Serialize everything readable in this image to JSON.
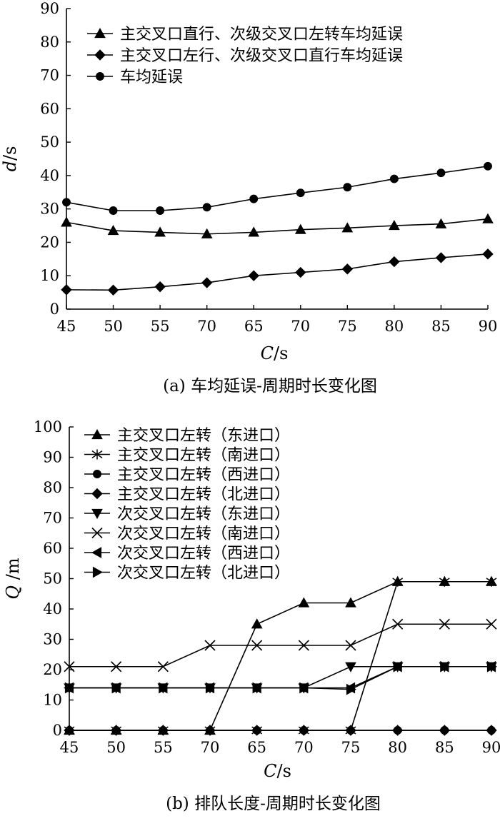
{
  "chart_data": [
    {
      "type": "line",
      "categories": [
        "45",
        "50",
        "55",
        "70",
        "65",
        "70",
        "75",
        "80",
        "85",
        "90"
      ],
      "xlabel_var": "C",
      "xlabel_unit": "/s",
      "ylabel_var": "d",
      "ylabel_unit": "/s",
      "ylim": [
        0,
        90
      ],
      "yticks": [
        "0",
        "10",
        "20",
        "30",
        "40",
        "50",
        "60",
        "70",
        "80",
        "90"
      ],
      "caption": "(a) 车均延误-周期时长变化图",
      "legend_position": "top-left",
      "series": [
        {
          "name": "主交叉口直行、次级交叉口左转车均延误",
          "marker": "triangle-up",
          "values": [
            26,
            23.5,
            23,
            22.5,
            23,
            23.8,
            24.3,
            25,
            25.5,
            27
          ]
        },
        {
          "name": "主交叉口左行、次级交叉口直行车均延误",
          "marker": "diamond",
          "values": [
            5.8,
            5.7,
            6.7,
            7.9,
            10,
            11,
            12,
            14.2,
            15.4,
            16.5
          ]
        },
        {
          "name": "车均延误",
          "marker": "circle",
          "values": [
            32,
            29.5,
            29.5,
            30.5,
            33,
            34.8,
            36.5,
            39,
            40.8,
            42.8
          ]
        }
      ]
    },
    {
      "type": "line",
      "categories": [
        "45",
        "50",
        "55",
        "70",
        "65",
        "70",
        "75",
        "80",
        "85",
        "90"
      ],
      "xlabel_var": "C",
      "xlabel_unit": "/s",
      "ylabel_var": "Q",
      "ylabel_unit": " /m",
      "ylim": [
        0,
        100
      ],
      "yticks": [
        "0",
        "10",
        "20",
        "30",
        "40",
        "50",
        "60",
        "70",
        "80",
        "90",
        "100"
      ],
      "caption": "(b) 排队长度-周期时长变化图",
      "legend_position": "top-left",
      "series": [
        {
          "name": "主交叉口左转（东进口）",
          "marker": "triangle-up",
          "values": [
            0,
            0,
            0,
            0,
            35,
            42,
            42,
            49,
            49,
            49
          ]
        },
        {
          "name": "主交叉口左转（南进口）",
          "marker": "star",
          "values": [
            0,
            0,
            0,
            0,
            0,
            0,
            0,
            49,
            49,
            49
          ]
        },
        {
          "name": "主交叉口左转（西进口）",
          "marker": "circle",
          "values": [
            0,
            0,
            0,
            0,
            0,
            0,
            0,
            0,
            0,
            0
          ]
        },
        {
          "name": "主交叉口左转（北进口）",
          "marker": "diamond",
          "values": [
            0,
            0,
            0,
            0,
            0,
            0,
            0,
            0,
            0,
            0
          ]
        },
        {
          "name": "次交叉口左转（东进口）",
          "marker": "triangle-down",
          "values": [
            14,
            14,
            14,
            14,
            14,
            14,
            21,
            21,
            21,
            21
          ]
        },
        {
          "name": "次交叉口左转（南进口）",
          "marker": "x",
          "values": [
            21,
            21,
            21,
            28,
            28,
            28,
            28,
            35,
            35,
            35
          ]
        },
        {
          "name": "次交叉口左转（西进口）",
          "marker": "triangle-left",
          "values": [
            14,
            14,
            14,
            14,
            14,
            14,
            14,
            21,
            21,
            21
          ]
        },
        {
          "name": "次交叉口左转（北进口）",
          "marker": "triangle-right",
          "values": [
            14,
            14,
            14,
            14,
            14,
            14,
            13.5,
            21,
            21,
            21
          ]
        }
      ]
    }
  ]
}
